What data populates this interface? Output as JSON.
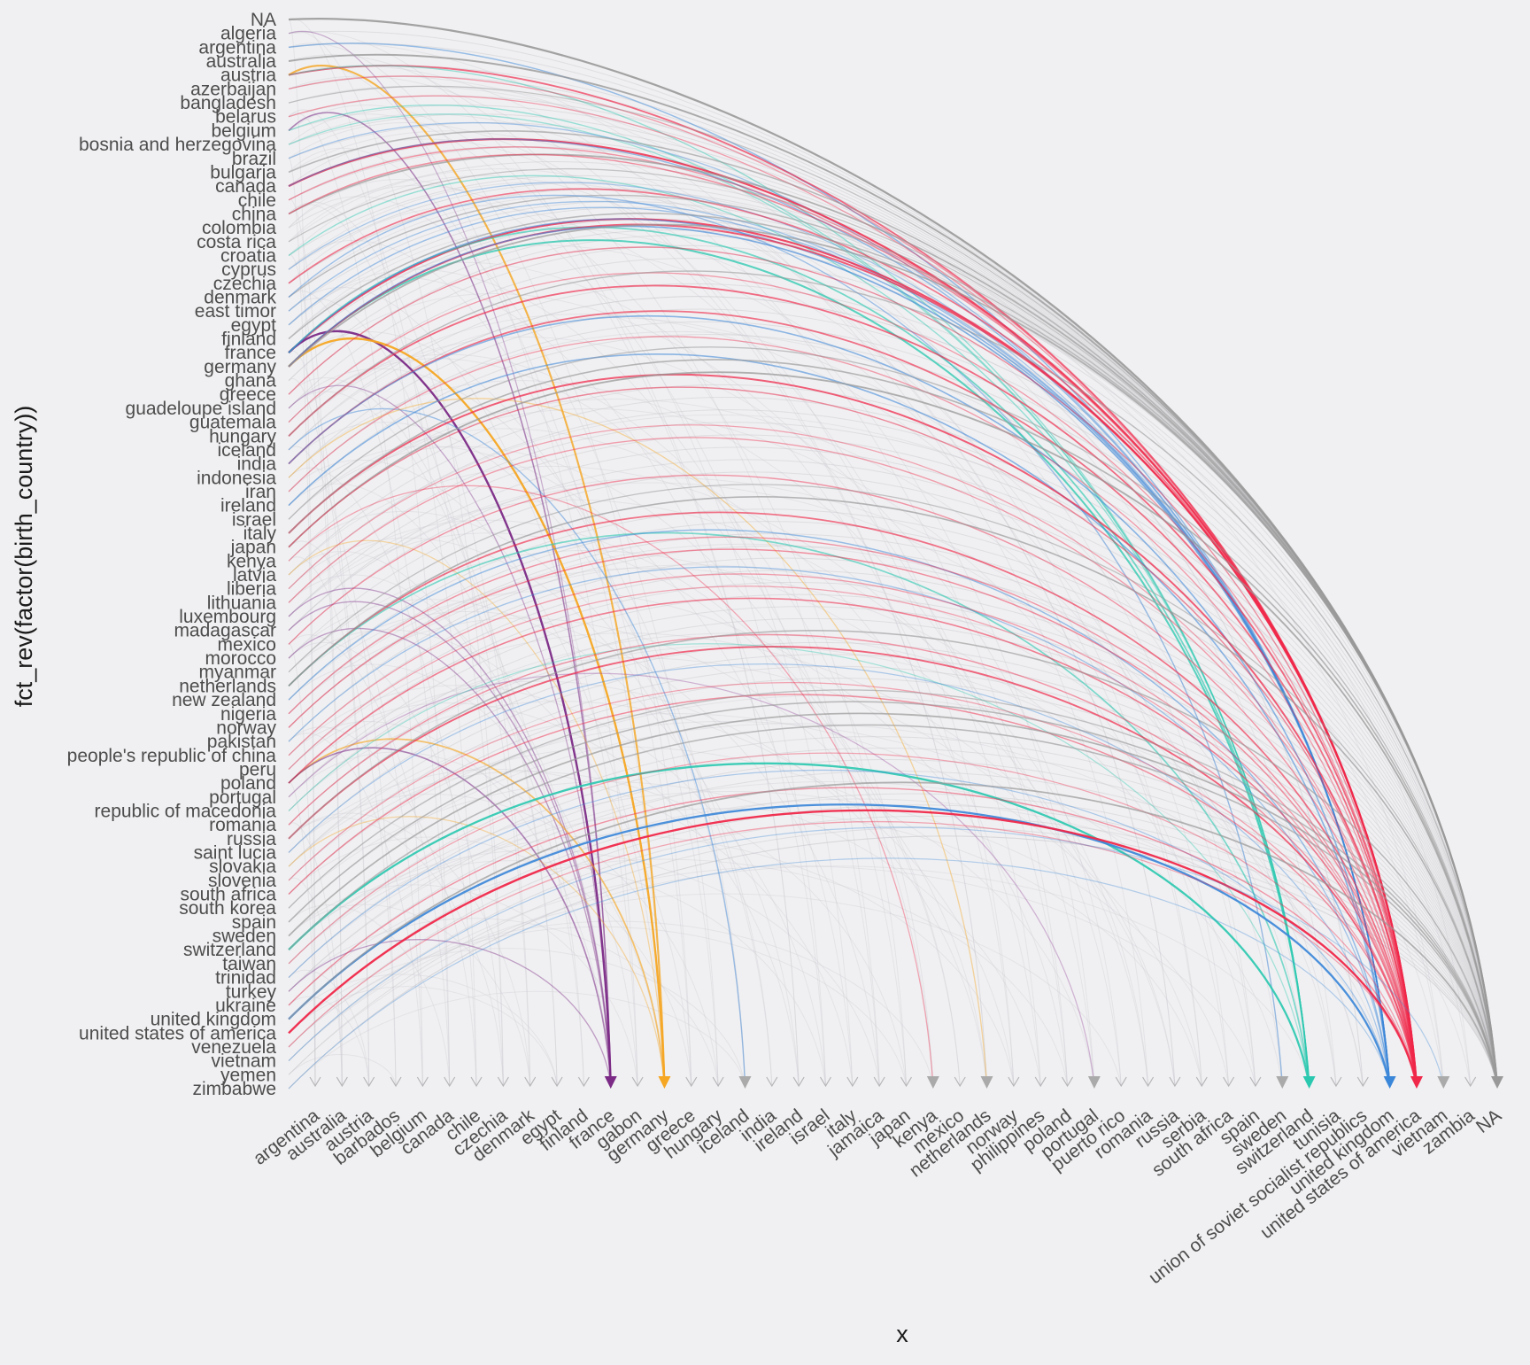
{
  "chart_data": {
    "type": "arc-flow",
    "xlabel": "x",
    "ylabel": "fct_rev(factor(birth_country))",
    "y_categories_top_to_bottom": [
      "NA",
      "algeria",
      "argentina",
      "australia",
      "austria",
      "azerbaijan",
      "bangladesh",
      "belarus",
      "belgium",
      "bosnia and herzegovina",
      "brazil",
      "bulgaria",
      "canada",
      "chile",
      "china",
      "colombia",
      "costa rica",
      "croatia",
      "cyprus",
      "czechia",
      "denmark",
      "east timor",
      "egypt",
      "finland",
      "france",
      "germany",
      "ghana",
      "greece",
      "guadeloupe island",
      "guatemala",
      "hungary",
      "iceland",
      "india",
      "indonesia",
      "iran",
      "ireland",
      "israel",
      "italy",
      "japan",
      "kenya",
      "latvia",
      "liberia",
      "lithuania",
      "luxembourg",
      "madagascar",
      "mexico",
      "morocco",
      "myanmar",
      "netherlands",
      "new zealand",
      "nigeria",
      "norway",
      "pakistan",
      "people's republic of china",
      "peru",
      "poland",
      "portugal",
      "republic of macedonia",
      "romania",
      "russia",
      "saint lucia",
      "slovakia",
      "slovenia",
      "south africa",
      "south korea",
      "spain",
      "sweden",
      "switzerland",
      "taiwan",
      "trinidad",
      "turkey",
      "ukraine",
      "united kingdom",
      "united states of america",
      "venezuela",
      "vietnam",
      "yemen",
      "zimbabwe"
    ],
    "x_categories": [
      "argentina",
      "australia",
      "austria",
      "barbados",
      "belgium",
      "canada",
      "chile",
      "czechia",
      "denmark",
      "egypt",
      "finland",
      "france",
      "gabon",
      "germany",
      "greece",
      "hungary",
      "iceland",
      "india",
      "ireland",
      "israel",
      "italy",
      "jamaica",
      "japan",
      "kenya",
      "mexico",
      "netherlands",
      "norway",
      "philippines",
      "poland",
      "portugal",
      "puerto rico",
      "romania",
      "russia",
      "serbia",
      "south africa",
      "spain",
      "sweden",
      "switzerland",
      "tunisia",
      "union of soviet socialist republics",
      "united kingdom",
      "united states of america",
      "vietnam",
      "zambia",
      "NA"
    ],
    "highlight_colors": {
      "france": "#7b2a86",
      "germany": "#f5a623",
      "switzerland": "#2bc8b0",
      "united kingdom": "#3a86d8",
      "united states of america": "#f0284a",
      "NA": "#999999"
    },
    "flows": [
      {
        "from": "NA",
        "to": "NA",
        "strength": 0.9
      },
      {
        "from": "algeria",
        "to": "france",
        "strength": 0.15
      },
      {
        "from": "argentina",
        "to": "united kingdom",
        "strength": 0.35
      },
      {
        "from": "australia",
        "to": "NA",
        "strength": 0.7
      },
      {
        "from": "austria",
        "to": "germany",
        "strength": 0.8
      },
      {
        "from": "austria",
        "to": "united states of america",
        "strength": 0.6
      },
      {
        "from": "austria",
        "to": "switzerland",
        "strength": 0.3
      },
      {
        "from": "azerbaijan",
        "to": "united states of america",
        "strength": 0.25
      },
      {
        "from": "bangladesh",
        "to": "NA",
        "strength": 0.2
      },
      {
        "from": "belarus",
        "to": "united states of america",
        "strength": 0.25
      },
      {
        "from": "belgium",
        "to": "france",
        "strength": 0.4
      },
      {
        "from": "belgium",
        "to": "switzerland",
        "strength": 0.3
      },
      {
        "from": "bosnia and herzegovina",
        "to": "switzerland",
        "strength": 0.25
      },
      {
        "from": "brazil",
        "to": "united kingdom",
        "strength": 0.25
      },
      {
        "from": "bulgaria",
        "to": "NA",
        "strength": 0.45
      },
      {
        "from": "canada",
        "to": "united states of america",
        "strength": 0.85
      },
      {
        "from": "canada",
        "to": "united kingdom",
        "strength": 0.35
      },
      {
        "from": "chile",
        "to": "united states of america",
        "strength": 0.3
      },
      {
        "from": "china",
        "to": "NA",
        "strength": 0.6
      },
      {
        "from": "china",
        "to": "united states of america",
        "strength": 0.35
      },
      {
        "from": "costa rica",
        "to": "NA",
        "strength": 0.2
      },
      {
        "from": "croatia",
        "to": "switzerland",
        "strength": 0.3
      },
      {
        "from": "cyprus",
        "to": "united kingdom",
        "strength": 0.2
      },
      {
        "from": "czechia",
        "to": "united states of america",
        "strength": 0.5
      },
      {
        "from": "denmark",
        "to": "NA",
        "strength": 0.35
      },
      {
        "from": "denmark",
        "to": "sweden",
        "strength": 0.3
      },
      {
        "from": "east timor",
        "to": "united kingdom",
        "strength": 0.25
      },
      {
        "from": "egypt",
        "to": "united kingdom",
        "strength": 0.3
      },
      {
        "from": "finland",
        "to": "NA",
        "strength": 0.4
      },
      {
        "from": "france",
        "to": "united states of america",
        "strength": 0.8
      },
      {
        "from": "france",
        "to": "france",
        "strength": 1.0
      },
      {
        "from": "france",
        "to": "switzerland",
        "strength": 0.55
      },
      {
        "from": "france",
        "to": "united kingdom",
        "strength": 0.45
      },
      {
        "from": "germany",
        "to": "germany",
        "strength": 1.0
      },
      {
        "from": "germany",
        "to": "switzerland",
        "strength": 0.75
      },
      {
        "from": "germany",
        "to": "united states of america",
        "strength": 0.7
      },
      {
        "from": "germany",
        "to": "united kingdom",
        "strength": 0.5
      },
      {
        "from": "germany",
        "to": "NA",
        "strength": 0.6
      },
      {
        "from": "greece",
        "to": "united states of america",
        "strength": 0.3
      },
      {
        "from": "guadeloupe island",
        "to": "france",
        "strength": 0.2
      },
      {
        "from": "guatemala",
        "to": "united states of america",
        "strength": 0.25
      },
      {
        "from": "hungary",
        "to": "united states of america",
        "strength": 0.6
      },
      {
        "from": "hungary",
        "to": "NA",
        "strength": 0.35
      },
      {
        "from": "iceland",
        "to": "iceland",
        "strength": 0.3
      },
      {
        "from": "india",
        "to": "united states of america",
        "strength": 0.55
      },
      {
        "from": "india",
        "to": "united kingdom",
        "strength": 0.45
      },
      {
        "from": "indonesia",
        "to": "netherlands",
        "strength": 0.25
      },
      {
        "from": "iran",
        "to": "united states of america",
        "strength": 0.25
      },
      {
        "from": "ireland",
        "to": "united kingdom",
        "strength": 0.45
      },
      {
        "from": "israel",
        "to": "NA",
        "strength": 0.3
      },
      {
        "from": "italy",
        "to": "united states of america",
        "strength": 0.7
      },
      {
        "from": "italy",
        "to": "NA",
        "strength": 0.5
      },
      {
        "from": "japan",
        "to": "NA",
        "strength": 0.65
      },
      {
        "from": "japan",
        "to": "united states of america",
        "strength": 0.35
      },
      {
        "from": "kenya",
        "to": "kenya",
        "strength": 0.2
      },
      {
        "from": "latvia",
        "to": "germany",
        "strength": 0.2
      },
      {
        "from": "liberia",
        "to": "united states of america",
        "strength": 0.2
      },
      {
        "from": "lithuania",
        "to": "united states of america",
        "strength": 0.25
      },
      {
        "from": "luxembourg",
        "to": "france",
        "strength": 0.25
      },
      {
        "from": "madagascar",
        "to": "france",
        "strength": 0.25
      },
      {
        "from": "mexico",
        "to": "united states of america",
        "strength": 0.3
      },
      {
        "from": "morocco",
        "to": "france",
        "strength": 0.25
      },
      {
        "from": "myanmar",
        "to": "NA",
        "strength": 0.25
      },
      {
        "from": "netherlands",
        "to": "united states of america",
        "strength": 0.55
      },
      {
        "from": "netherlands",
        "to": "switzerland",
        "strength": 0.5
      },
      {
        "from": "netherlands",
        "to": "NA",
        "strength": 0.5
      },
      {
        "from": "new zealand",
        "to": "united kingdom",
        "strength": 0.35
      },
      {
        "from": "nigeria",
        "to": "united states of america",
        "strength": 0.3
      },
      {
        "from": "norway",
        "to": "united states of america",
        "strength": 0.35
      },
      {
        "from": "pakistan",
        "to": "united kingdom",
        "strength": 0.25
      },
      {
        "from": "people's republic of china",
        "to": "united states of america",
        "strength": 0.25
      },
      {
        "from": "peru",
        "to": "united states of america",
        "strength": 0.2
      },
      {
        "from": "poland",
        "to": "germany",
        "strength": 0.55
      },
      {
        "from": "poland",
        "to": "united states of america",
        "strength": 0.45
      },
      {
        "from": "poland",
        "to": "france",
        "strength": 0.45
      },
      {
        "from": "portugal",
        "to": "portugal",
        "strength": 0.2
      },
      {
        "from": "republic of macedonia",
        "to": "switzerland",
        "strength": 0.2
      },
      {
        "from": "romania",
        "to": "united states of america",
        "strength": 0.3
      },
      {
        "from": "russia",
        "to": "united states of america",
        "strength": 0.65
      },
      {
        "from": "russia",
        "to": "NA",
        "strength": 0.45
      },
      {
        "from": "saint lucia",
        "to": "united kingdom",
        "strength": 0.2
      },
      {
        "from": "slovakia",
        "to": "germany",
        "strength": 0.2
      },
      {
        "from": "slovenia",
        "to": "united states of america",
        "strength": 0.2
      },
      {
        "from": "south africa",
        "to": "united states of america",
        "strength": 0.35
      },
      {
        "from": "south korea",
        "to": "NA",
        "strength": 0.3
      },
      {
        "from": "spain",
        "to": "NA",
        "strength": 0.45
      },
      {
        "from": "sweden",
        "to": "NA",
        "strength": 0.55
      },
      {
        "from": "switzerland",
        "to": "switzerland",
        "strength": 0.95
      },
      {
        "from": "switzerland",
        "to": "NA",
        "strength": 0.45
      },
      {
        "from": "taiwan",
        "to": "united states of america",
        "strength": 0.2
      },
      {
        "from": "trinidad",
        "to": "united kingdom",
        "strength": 0.2
      },
      {
        "from": "turkey",
        "to": "france",
        "strength": 0.25
      },
      {
        "from": "ukraine",
        "to": "united states of america",
        "strength": 0.3
      },
      {
        "from": "united kingdom",
        "to": "united kingdom",
        "strength": 0.95
      },
      {
        "from": "united kingdom",
        "to": "NA",
        "strength": 0.6
      },
      {
        "from": "united states of america",
        "to": "united states of america",
        "strength": 1.0
      },
      {
        "from": "venezuela",
        "to": "united states of america",
        "strength": 0.2
      },
      {
        "from": "vietnam",
        "to": "vietnam",
        "strength": 0.15
      },
      {
        "from": "zimbabwe",
        "to": "united kingdom",
        "strength": 0.15
      }
    ],
    "grid": false,
    "legend": "none"
  }
}
